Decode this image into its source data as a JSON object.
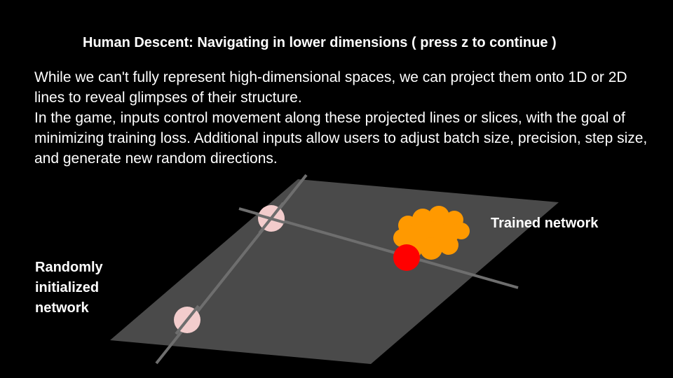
{
  "slide": {
    "title": "Human Descent: Navigating in lower dimensions ( press z to continue )",
    "paragraph1": "While we can't fully represent high-dimensional spaces, we can project them onto 1D or 2D lines to reveal glimpses of their structure.",
    "paragraph2": "In the game, inputs control movement along these projected lines or slices, with the goal of minimizing training loss. Additional inputs allow users to adjust batch size, precision, step size, and generate new random directions."
  },
  "labels": {
    "trained": "Trained network",
    "random_line1": "Randomly",
    "random_line2": "initialized",
    "random_line3": "network"
  },
  "colors": {
    "background": "#000000",
    "plane": "#4a4a4a",
    "axis_lines": "#6e6e6e",
    "random_point": "#f2cccc",
    "trained_cluster": "#ff9900",
    "current_point": "#ff0000"
  }
}
